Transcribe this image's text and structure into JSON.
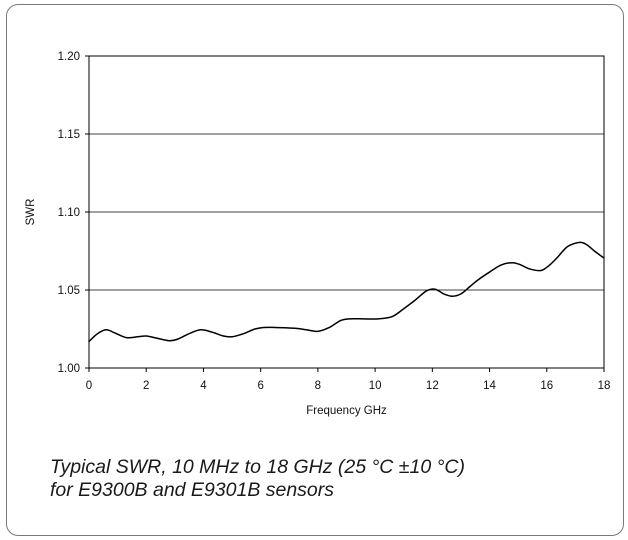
{
  "chart_data": {
    "type": "line",
    "title": "",
    "xlabel": "Frequency GHz",
    "ylabel": "SWR",
    "xlim": [
      0,
      18
    ],
    "ylim": [
      1.0,
      1.2
    ],
    "x_ticks": [
      "0",
      "2",
      "4",
      "6",
      "8",
      "10",
      "12",
      "14",
      "16",
      "18"
    ],
    "y_ticks": [
      "1.00",
      "1.05",
      "1.10",
      "1.15",
      "1.20"
    ],
    "grid": "horizontal",
    "legend": "none",
    "line_color": "#000000",
    "series": [
      {
        "x": [
          0,
          0.3,
          0.6,
          0.9,
          1.3,
          1.7,
          2.0,
          2.4,
          2.8,
          3.1,
          3.5,
          3.9,
          4.3,
          4.7,
          5.0,
          5.4,
          5.8,
          6.1,
          6.5,
          7.2,
          7.6,
          8.0,
          8.4,
          8.8,
          9.1,
          9.6,
          10.1,
          10.6,
          11.0,
          11.4,
          11.8,
          12.1,
          12.4,
          12.7,
          13.0,
          13.3,
          13.6,
          14.0,
          14.4,
          14.8,
          15.1,
          15.4,
          15.8,
          16.1,
          16.4,
          16.7,
          17.0,
          17.2,
          17.4,
          17.7,
          18.0
        ],
        "values": [
          1.017,
          1.022,
          1.0245,
          1.0225,
          1.0195,
          1.02,
          1.0205,
          1.019,
          1.0175,
          1.0185,
          1.022,
          1.0245,
          1.023,
          1.0205,
          1.02,
          1.022,
          1.025,
          1.026,
          1.026,
          1.0255,
          1.0245,
          1.0235,
          1.026,
          1.0305,
          1.0315,
          1.0315,
          1.0315,
          1.033,
          1.038,
          1.0435,
          1.0495,
          1.0505,
          1.0475,
          1.046,
          1.0475,
          1.052,
          1.0565,
          1.0615,
          1.066,
          1.0675,
          1.066,
          1.0635,
          1.0625,
          1.066,
          1.0715,
          1.0775,
          1.08,
          1.0805,
          1.079,
          1.0745,
          1.0705
        ]
      }
    ]
  },
  "caption": {
    "line1": "Typical SWR, 10 MHz to 18 GHz (25 °C ±10 °C)",
    "line2": "for E9300B and E9301B sensors"
  }
}
